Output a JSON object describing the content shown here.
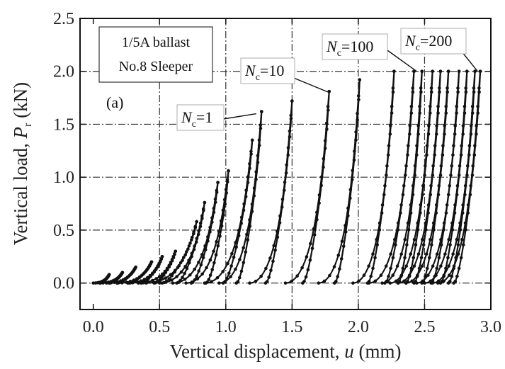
{
  "chart_data": {
    "type": "line",
    "xlabel_main": "Vertical displacement, ",
    "xlabel_var": "u",
    "xlabel_unit": " (mm)",
    "ylabel_main": "Vertical load, ",
    "ylabel_var": "P",
    "ylabel_sub": "r",
    "ylabel_unit": " (kN)",
    "xlim": [
      -0.1,
      3.0
    ],
    "ylim": [
      -0.25,
      2.5
    ],
    "xticks": [
      0.0,
      0.5,
      1.0,
      1.5,
      2.0,
      2.5,
      3.0
    ],
    "xtick_labels": [
      "0.0",
      "0.5",
      "1.0",
      "1.5",
      "2.0",
      "2.5",
      "3.0"
    ],
    "yticks": [
      0.0,
      0.5,
      1.0,
      1.5,
      2.0,
      2.5
    ],
    "ytick_labels": [
      "0.0",
      "0.5",
      "1.0",
      "1.5",
      "2.0",
      "2.5"
    ],
    "grid": true,
    "legend_box": {
      "line1": "1/5A ballast",
      "line2": "No.8 Sleeper"
    },
    "panel_label": "(a)",
    "annotations": [
      {
        "var": "N",
        "sub": "c",
        "text": "=1",
        "point": [
          1.23,
          1.6
        ]
      },
      {
        "var": "N",
        "sub": "c",
        "text": "=10",
        "point": [
          1.78,
          1.8
        ]
      },
      {
        "var": "N",
        "sub": "c",
        "text": "=100",
        "point": [
          2.44,
          2.0
        ]
      },
      {
        "var": "N",
        "sub": "c",
        "text": "=200",
        "point": [
          2.9,
          2.0
        ]
      }
    ],
    "loops": [
      {
        "start": 0.0,
        "peakX": 0.12,
        "peakY": 0.08,
        "end": 0.05
      },
      {
        "start": 0.05,
        "peakX": 0.22,
        "peakY": 0.1,
        "end": 0.12
      },
      {
        "start": 0.1,
        "peakX": 0.32,
        "peakY": 0.15,
        "end": 0.18
      },
      {
        "start": 0.18,
        "peakX": 0.44,
        "peakY": 0.2,
        "end": 0.27
      },
      {
        "start": 0.26,
        "peakX": 0.52,
        "peakY": 0.25,
        "end": 0.36
      },
      {
        "start": 0.34,
        "peakX": 0.62,
        "peakY": 0.3,
        "end": 0.46
      },
      {
        "start": 0.4,
        "peakX": 0.78,
        "peakY": 0.58,
        "end": 0.52
      },
      {
        "start": 0.5,
        "peakX": 0.84,
        "peakY": 0.76,
        "end": 0.63
      },
      {
        "start": 0.6,
        "peakX": 0.94,
        "peakY": 0.95,
        "end": 0.74
      },
      {
        "start": 0.7,
        "peakX": 1.02,
        "peakY": 1.06,
        "end": 0.85
      },
      {
        "start": 0.84,
        "peakX": 1.2,
        "peakY": 1.35,
        "end": 0.98
      },
      {
        "start": 0.95,
        "peakX": 1.27,
        "peakY": 1.62,
        "end": 1.08
      },
      {
        "start": 1.18,
        "peakX": 1.5,
        "peakY": 1.72,
        "end": 1.3
      },
      {
        "start": 1.45,
        "peakX": 1.78,
        "peakY": 1.81,
        "end": 1.58
      },
      {
        "start": 1.7,
        "peakX": 2.01,
        "peakY": 1.92,
        "end": 1.82
      },
      {
        "start": 1.96,
        "peakX": 2.27,
        "peakY": 2.0,
        "end": 2.07
      },
      {
        "start": 2.08,
        "peakX": 2.42,
        "peakY": 2.0,
        "end": 2.2
      },
      {
        "start": 2.18,
        "peakX": 2.48,
        "peakY": 2.0,
        "end": 2.3
      },
      {
        "start": 2.24,
        "peakX": 2.56,
        "peakY": 2.0,
        "end": 2.36
      },
      {
        "start": 2.3,
        "peakX": 2.62,
        "peakY": 2.0,
        "end": 2.42
      },
      {
        "start": 2.36,
        "peakX": 2.68,
        "peakY": 2.0,
        "end": 2.48
      },
      {
        "start": 2.44,
        "peakX": 2.76,
        "peakY": 2.0,
        "end": 2.55
      },
      {
        "start": 2.5,
        "peakX": 2.82,
        "peakY": 2.0,
        "end": 2.62
      },
      {
        "start": 2.56,
        "peakX": 2.88,
        "peakY": 2.0,
        "end": 2.68
      },
      {
        "start": 2.6,
        "peakX": 2.92,
        "peakY": 2.0,
        "end": 2.72
      }
    ]
  }
}
